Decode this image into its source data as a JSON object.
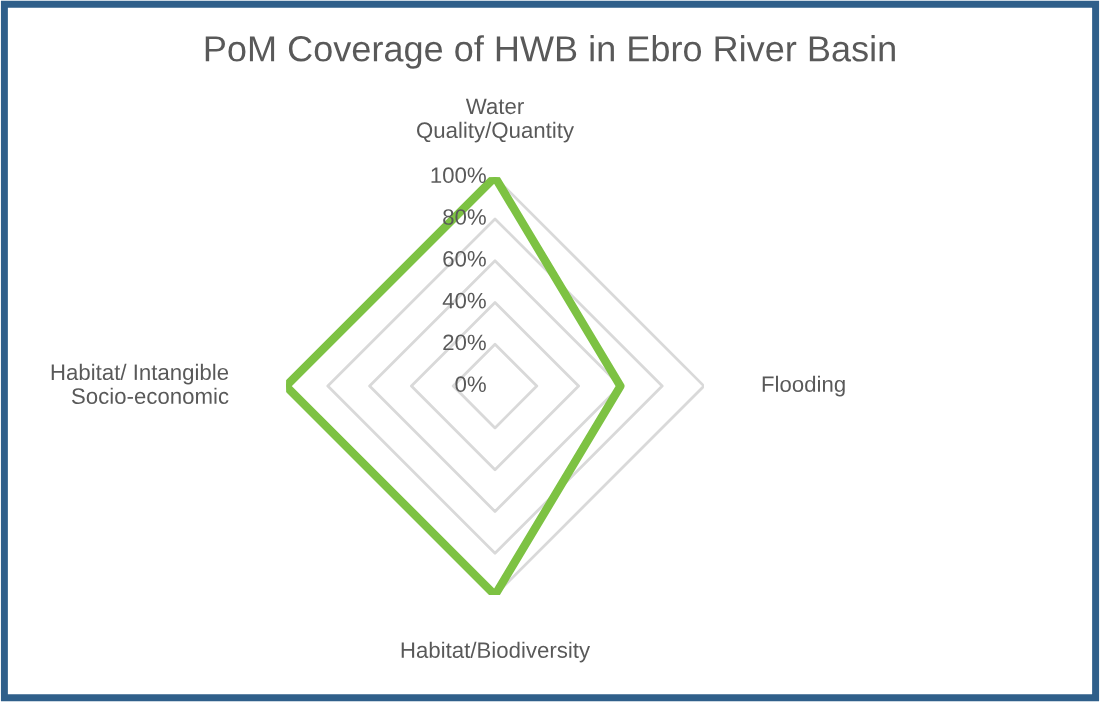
{
  "chart_data": {
    "type": "radar",
    "title": "PoM Coverage of HWB in Ebro River Basin",
    "categories": [
      "Water\nQuality/Quantity",
      "Flooding",
      "Habitat/Biodiversity",
      "Habitat/ Intangible\nSocio-economic"
    ],
    "series": [
      {
        "color": "#7dc243",
        "values": [
          100,
          60,
          100,
          100
        ]
      }
    ],
    "ylim": [
      0,
      100
    ],
    "yticks": [
      {
        "value": 0,
        "label": "0%"
      },
      {
        "value": 20,
        "label": "20%"
      },
      {
        "value": 40,
        "label": "40%"
      },
      {
        "value": 60,
        "label": "60%"
      },
      {
        "value": 80,
        "label": "80%"
      },
      {
        "value": 100,
        "label": "100%"
      }
    ],
    "grid": true
  }
}
